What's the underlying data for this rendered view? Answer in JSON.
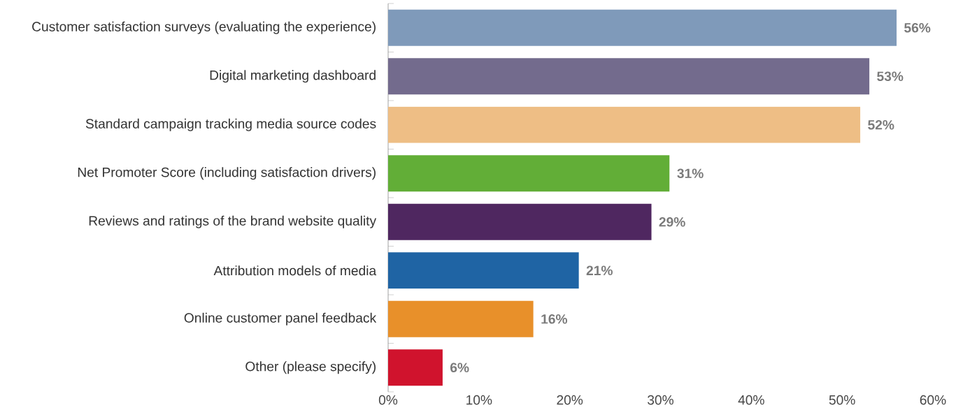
{
  "chart_data": {
    "type": "bar",
    "orientation": "horizontal",
    "categories": [
      "Customer satisfaction surveys (evaluating the experience)",
      "Digital marketing dashboard",
      "Standard campaign tracking media source codes",
      "Net Promoter Score (including satisfaction drivers)",
      "Reviews and ratings of the brand website quality",
      "Attribution models of media",
      "Online customer panel feedback",
      "Other (please specify)"
    ],
    "values": [
      56,
      53,
      52,
      31,
      29,
      21,
      16,
      6
    ],
    "value_labels": [
      "56%",
      "53%",
      "52%",
      "31%",
      "29%",
      "21%",
      "16%",
      "6%"
    ],
    "colors": [
      "#7f9aba",
      "#736b8d",
      "#eebe85",
      "#62ae37",
      "#4f2760",
      "#1f64a4",
      "#e8902a",
      "#d0132d"
    ],
    "xlim": [
      0,
      60
    ],
    "xticks": [
      {
        "value": 0,
        "label": "0%"
      },
      {
        "value": 10,
        "label": "10%"
      },
      {
        "value": 20,
        "label": "20%"
      },
      {
        "value": 30,
        "label": "30%"
      },
      {
        "value": 40,
        "label": "40%"
      },
      {
        "value": 50,
        "label": "50%"
      },
      {
        "value": 60,
        "label": "60%"
      }
    ],
    "grid": false
  }
}
